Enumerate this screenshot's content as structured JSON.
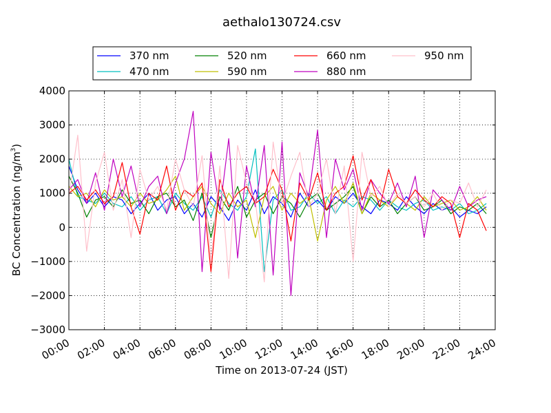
{
  "chart_data": {
    "type": "line",
    "title": "aethalo130724.csv",
    "xlabel": "Time on 2013-07-24 (JST)",
    "ylabel": "BC Concentration (ng/m",
    "ylabel_superscript": "3",
    "ylabel_suffix": ")",
    "xlim": [
      0,
      24
    ],
    "ylim": [
      -3000,
      4000
    ],
    "x_ticks": [
      0,
      2,
      4,
      6,
      8,
      10,
      12,
      14,
      16,
      18,
      20,
      22,
      24
    ],
    "x_tick_labels": [
      "00:00",
      "02:00",
      "04:00",
      "06:00",
      "08:00",
      "10:00",
      "12:00",
      "14:00",
      "16:00",
      "18:00",
      "20:00",
      "22:00",
      "24:00"
    ],
    "y_ticks": [
      -3000,
      -2000,
      -1000,
      0,
      1000,
      2000,
      3000,
      4000
    ],
    "y_tick_labels": [
      "−3000",
      "−2000",
      "−1000",
      "0",
      "1000",
      "2000",
      "3000",
      "4000"
    ],
    "grid": true,
    "legend_position": "top",
    "series": [
      {
        "name": "370 nm",
        "color": "#0000ff",
        "x": [
          0.0,
          0.5,
          1.0,
          1.5,
          2.0,
          2.5,
          3.0,
          3.5,
          4.0,
          4.5,
          5.0,
          5.5,
          6.0,
          6.5,
          7.0,
          7.5,
          8.0,
          8.5,
          9.0,
          9.5,
          10.0,
          10.5,
          11.0,
          11.5,
          12.0,
          12.5,
          13.0,
          13.5,
          14.0,
          14.5,
          15.0,
          15.5,
          16.0,
          16.5,
          17.0,
          17.5,
          18.0,
          18.5,
          19.0,
          19.5,
          20.0,
          20.5,
          21.0,
          21.5,
          22.0,
          22.5,
          23.0,
          23.5
        ],
        "y": [
          1800,
          1100,
          700,
          1000,
          600,
          900,
          800,
          400,
          700,
          1000,
          500,
          800,
          900,
          400,
          700,
          300,
          900,
          600,
          200,
          800,
          500,
          1100,
          400,
          900,
          700,
          300,
          1000,
          600,
          800,
          500,
          900,
          700,
          1000,
          600,
          400,
          800,
          700,
          500,
          900,
          600,
          400,
          700,
          500,
          600,
          300,
          500,
          400,
          600
        ]
      },
      {
        "name": "470 nm",
        "color": "#00bfbf",
        "x": [
          0.0,
          0.5,
          1.0,
          1.5,
          2.0,
          2.5,
          3.0,
          3.5,
          4.0,
          4.5,
          5.0,
          5.5,
          6.0,
          6.5,
          7.0,
          7.5,
          8.0,
          8.5,
          9.0,
          9.5,
          10.0,
          10.5,
          11.0,
          11.5,
          12.0,
          12.5,
          13.0,
          13.5,
          14.0,
          14.5,
          15.0,
          15.5,
          16.0,
          16.5,
          17.0,
          17.5,
          18.0,
          18.5,
          19.0,
          19.5,
          20.0,
          20.5,
          21.0,
          21.5,
          22.0,
          22.5,
          23.0,
          23.5
        ],
        "y": [
          2000,
          900,
          800,
          700,
          1000,
          700,
          600,
          900,
          500,
          800,
          900,
          400,
          1000,
          700,
          500,
          900,
          300,
          1100,
          700,
          500,
          900,
          2300,
          -1300,
          800,
          1100,
          500,
          600,
          1000,
          700,
          900,
          400,
          800,
          600,
          900,
          800,
          500,
          800,
          600,
          500,
          700,
          800,
          500,
          600,
          500,
          700,
          400,
          500,
          700
        ]
      },
      {
        "name": "520 nm",
        "color": "#008000",
        "x": [
          0.0,
          0.5,
          1.0,
          1.5,
          2.0,
          2.5,
          3.0,
          3.5,
          4.0,
          4.5,
          5.0,
          5.5,
          6.0,
          6.5,
          7.0,
          7.5,
          8.0,
          8.5,
          9.0,
          9.5,
          10.0,
          10.5,
          11.0,
          11.5,
          12.0,
          12.5,
          13.0,
          13.5,
          14.0,
          14.5,
          15.0,
          15.5,
          16.0,
          16.5,
          17.0,
          17.5,
          18.0,
          18.5,
          19.0,
          19.5,
          20.0,
          20.5,
          21.0,
          21.5,
          22.0,
          22.5,
          23.0,
          23.5
        ],
        "y": [
          1500,
          1000,
          300,
          800,
          900,
          600,
          1100,
          700,
          800,
          400,
          900,
          1000,
          600,
          800,
          200,
          1000,
          -300,
          900,
          500,
          1200,
          300,
          800,
          1000,
          400,
          900,
          700,
          300,
          800,
          1000,
          500,
          700,
          900,
          1200,
          400,
          900,
          600,
          800,
          400,
          700,
          900,
          500,
          600,
          800,
          400,
          600,
          500,
          700,
          400
        ]
      },
      {
        "name": "590 nm",
        "color": "#bfbf00",
        "x": [
          0.0,
          0.5,
          1.0,
          1.5,
          2.0,
          2.5,
          3.0,
          3.5,
          4.0,
          4.5,
          5.0,
          5.5,
          6.0,
          6.5,
          7.0,
          7.5,
          8.0,
          8.5,
          9.0,
          9.5,
          10.0,
          10.5,
          11.0,
          11.5,
          12.0,
          12.5,
          13.0,
          13.5,
          14.0,
          14.5,
          15.0,
          15.5,
          16.0,
          16.5,
          17.0,
          17.5,
          18.0,
          18.5,
          19.0,
          19.5,
          20.0,
          20.5,
          21.0,
          21.5,
          22.0,
          22.5,
          23.0,
          23.5
        ],
        "y": [
          1200,
          900,
          1000,
          600,
          1100,
          800,
          900,
          600,
          1000,
          700,
          800,
          1100,
          1500,
          500,
          900,
          1200,
          700,
          400,
          1000,
          600,
          800,
          -300,
          900,
          1200,
          500,
          1000,
          700,
          900,
          -400,
          800,
          1200,
          700,
          1300,
          400,
          1000,
          800,
          600,
          900,
          700,
          500,
          900,
          600,
          700,
          800,
          500,
          600,
          900,
          500
        ]
      },
      {
        "name": "660 nm",
        "color": "#ff0000",
        "x": [
          0.0,
          0.5,
          1.0,
          1.5,
          2.0,
          2.5,
          3.0,
          3.5,
          4.0,
          4.5,
          5.0,
          5.5,
          6.0,
          6.5,
          7.0,
          7.5,
          8.0,
          8.5,
          9.0,
          9.5,
          10.0,
          10.5,
          11.0,
          11.5,
          12.0,
          12.5,
          13.0,
          13.5,
          14.0,
          14.5,
          15.0,
          15.5,
          16.0,
          16.5,
          17.0,
          17.5,
          18.0,
          18.5,
          19.0,
          19.5,
          20.0,
          20.5,
          21.0,
          21.5,
          22.0,
          22.5,
          23.0,
          23.5
        ],
        "y": [
          1000,
          1200,
          800,
          1100,
          700,
          900,
          1900,
          600,
          -200,
          1000,
          800,
          1800,
          500,
          1100,
          900,
          1300,
          -1300,
          1400,
          600,
          1000,
          1200,
          700,
          900,
          1700,
          1100,
          -400,
          1300,
          800,
          1600,
          500,
          1000,
          1200,
          2100,
          800,
          1400,
          600,
          1700,
          900,
          700,
          1100,
          800,
          600,
          900,
          700,
          -300,
          700,
          500,
          -100
        ]
      },
      {
        "name": "880 nm",
        "color": "#bf00bf",
        "x": [
          0.0,
          0.5,
          1.0,
          1.5,
          2.0,
          2.5,
          3.0,
          3.5,
          4.0,
          4.5,
          5.0,
          5.5,
          6.0,
          6.5,
          7.0,
          7.5,
          8.0,
          8.5,
          9.0,
          9.5,
          10.0,
          10.5,
          11.0,
          11.5,
          12.0,
          12.5,
          13.0,
          13.5,
          14.0,
          14.5,
          15.0,
          15.5,
          16.0,
          16.5,
          17.0,
          17.5,
          18.0,
          18.5,
          19.0,
          19.5,
          20.0,
          20.5,
          21.0,
          21.5,
          22.0,
          22.5,
          23.0,
          23.5
        ],
        "y": [
          1100,
          1400,
          700,
          1600,
          500,
          2000,
          900,
          1800,
          600,
          1200,
          1500,
          400,
          1300,
          2000,
          3400,
          -1300,
          2200,
          500,
          2600,
          -900,
          1800,
          600,
          2400,
          -1400,
          2500,
          -2000,
          1600,
          900,
          2850,
          -300,
          2000,
          1100,
          1700,
          500,
          1400,
          1000,
          700,
          1300,
          600,
          1500,
          -300,
          1100,
          800,
          500,
          1200,
          600,
          800,
          900
        ]
      },
      {
        "name": "950 nm",
        "color": "#ffc0cb",
        "x": [
          0.0,
          0.5,
          1.0,
          1.5,
          2.0,
          2.5,
          3.0,
          3.5,
          4.0,
          4.5,
          5.0,
          5.5,
          6.0,
          6.5,
          7.0,
          7.5,
          8.0,
          8.5,
          9.0,
          9.5,
          10.0,
          10.5,
          11.0,
          11.5,
          12.0,
          12.5,
          13.0,
          13.5,
          14.0,
          14.5,
          15.0,
          15.5,
          16.0,
          16.5,
          17.0,
          17.5,
          18.0,
          18.5,
          19.0,
          19.5,
          20.0,
          20.5,
          21.0,
          21.5,
          22.0,
          22.5,
          23.0,
          23.5
        ],
        "y": [
          900,
          2700,
          -700,
          1300,
          2200,
          500,
          1400,
          -300,
          1700,
          800,
          1200,
          500,
          2000,
          1100,
          600,
          2100,
          -1000,
          1800,
          -1500,
          2400,
          1300,
          800,
          -1600,
          2500,
          700,
          1500,
          2200,
          600,
          1000,
          2000,
          400,
          1800,
          -1000,
          2200,
          900,
          1200,
          600,
          1000,
          700,
          900,
          600,
          1000,
          500,
          800,
          700,
          1300,
          600,
          1100
        ]
      }
    ]
  }
}
